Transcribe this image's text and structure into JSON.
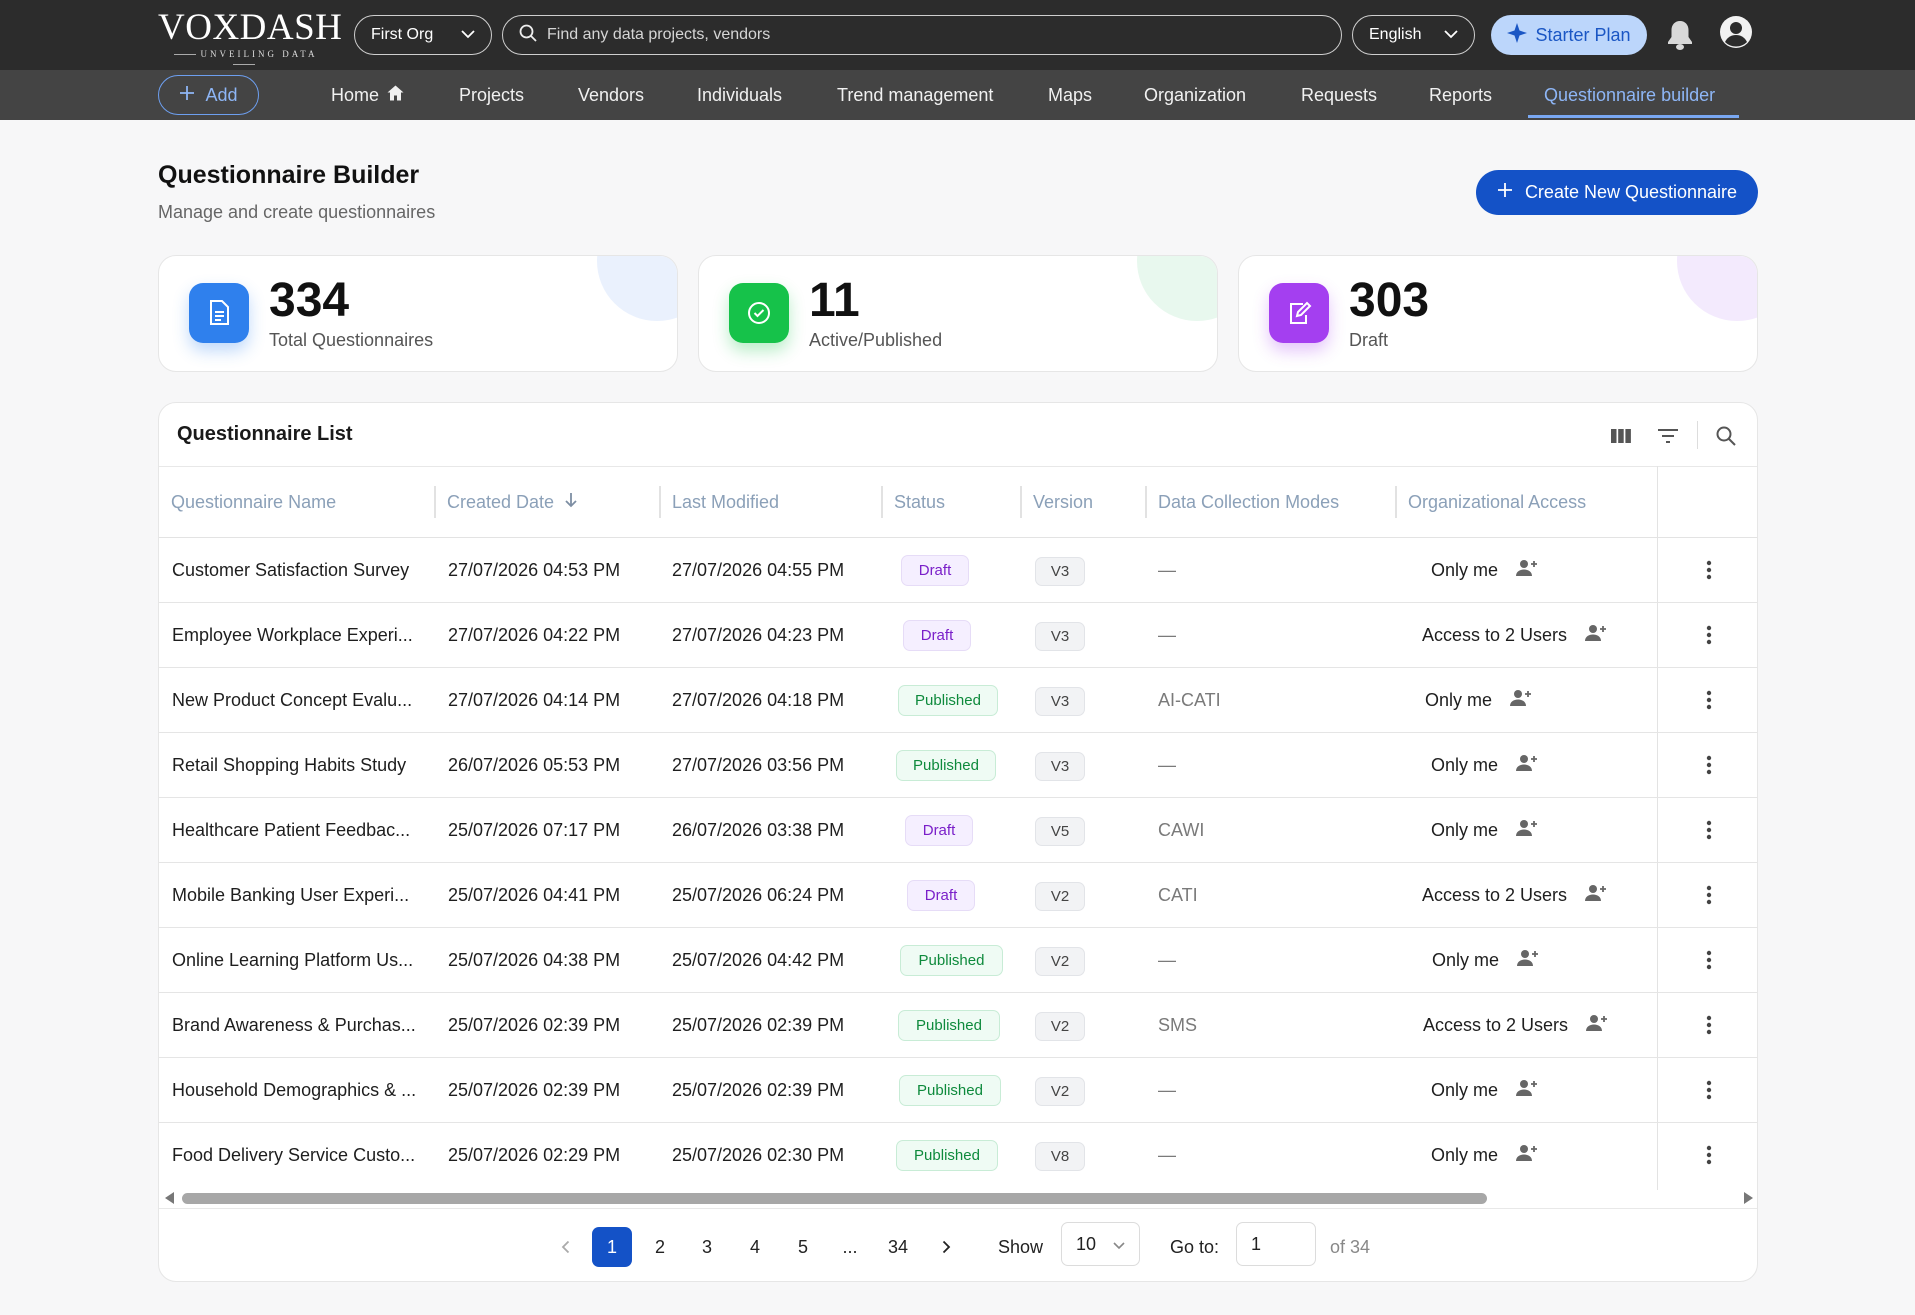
{
  "topbar": {
    "logo_main": "VOXDASH",
    "logo_sub": "UNVEILING DATA",
    "org_select": "First Org",
    "search_placeholder": "Find any data projects, vendors",
    "language": "English",
    "plan_label": "Starter Plan",
    "icons": [
      "chevron-down-icon",
      "search-icon",
      "sparkle-icon",
      "bell-icon",
      "user-avatar-icon"
    ]
  },
  "nav": {
    "add_label": "Add",
    "items": [
      "Home",
      "Projects",
      "Vendors",
      "Individuals",
      "Trend management",
      "Maps",
      "Organization",
      "Requests",
      "Reports",
      "Questionnaire builder"
    ],
    "active_item": "Questionnaire builder"
  },
  "page": {
    "title": "Questionnaire Builder",
    "subtitle": "Manage and create questionnaires",
    "create_button": "Create New Questionnaire"
  },
  "stats": [
    {
      "value": "334",
      "label": "Total Questionnaires",
      "icon": "document-icon",
      "color": "#2f80ed"
    },
    {
      "value": "11",
      "label": "Active/Published",
      "icon": "check-circle-icon",
      "color": "#16c24a"
    },
    {
      "value": "303",
      "label": "Draft",
      "icon": "edit-document-icon",
      "color": "#a43ff0"
    }
  ],
  "table": {
    "title": "Questionnaire List",
    "columns": [
      "Questionnaire Name",
      "Created Date",
      "Last Modified",
      "Status",
      "Version",
      "Data Collection Modes",
      "Organizational Access"
    ],
    "sort_column": "Created Date",
    "rows": [
      {
        "name": "Customer Satisfaction Survey",
        "created": "27/07/2026 04:53 PM",
        "modified": "27/07/2026 04:55 PM",
        "status": "Draft",
        "version": "V3",
        "modes": "—",
        "access": "Only me"
      },
      {
        "name": "Employee Workplace Experi...",
        "created": "27/07/2026 04:22 PM",
        "modified": "27/07/2026 04:23 PM",
        "status": "Draft",
        "version": "V3",
        "modes": "—",
        "access": "Access to 2 Users"
      },
      {
        "name": "New Product Concept Evalu...",
        "created": "27/07/2026 04:14 PM",
        "modified": "27/07/2026 04:18 PM",
        "status": "Published",
        "version": "V3",
        "modes": "AI-CATI",
        "access": "Only me"
      },
      {
        "name": "Retail Shopping Habits Study",
        "created": "26/07/2026 05:53 PM",
        "modified": "27/07/2026 03:56 PM",
        "status": "Published",
        "version": "V3",
        "modes": "—",
        "access": "Only me"
      },
      {
        "name": "Healthcare Patient Feedbac...",
        "created": "25/07/2026 07:17 PM",
        "modified": "26/07/2026 03:38 PM",
        "status": "Draft",
        "version": "V5",
        "modes": "CAWI",
        "access": "Only me"
      },
      {
        "name": "Mobile Banking User Experi...",
        "created": "25/07/2026 04:41 PM",
        "modified": "25/07/2026 06:24 PM",
        "status": "Draft",
        "version": "V2",
        "modes": "CATI",
        "access": "Access to 2 Users"
      },
      {
        "name": "Online Learning Platform Us...",
        "created": "25/07/2026 04:38 PM",
        "modified": "25/07/2026 04:42 PM",
        "status": "Published",
        "version": "V2",
        "modes": "—",
        "access": "Only me"
      },
      {
        "name": "Brand Awareness & Purchas...",
        "created": "25/07/2026 02:39 PM",
        "modified": "25/07/2026 02:39 PM",
        "status": "Published",
        "version": "V2",
        "modes": "SMS",
        "access": "Access to 2 Users"
      },
      {
        "name": "Household Demographics & ...",
        "created": "25/07/2026 02:39 PM",
        "modified": "25/07/2026 02:39 PM",
        "status": "Published",
        "version": "V2",
        "modes": "—",
        "access": "Only me"
      },
      {
        "name": "Food Delivery Service Custo...",
        "created": "25/07/2026 02:29 PM",
        "modified": "25/07/2026 02:30 PM",
        "status": "Published",
        "version": "V8",
        "modes": "—",
        "access": "Only me"
      }
    ]
  },
  "pagination": {
    "pages": [
      "1",
      "2",
      "3",
      "4",
      "5",
      "...",
      "34"
    ],
    "current": "1",
    "show_label": "Show",
    "page_size": "10",
    "goto_label": "Go to:",
    "goto_value": "1",
    "of_label": "of 34"
  },
  "colors": {
    "primary": "#1452c7",
    "draft": "#7a1fc9",
    "published": "#0e8a3c",
    "header_bg": "#2c2c2c",
    "nav_bg": "#444444"
  }
}
